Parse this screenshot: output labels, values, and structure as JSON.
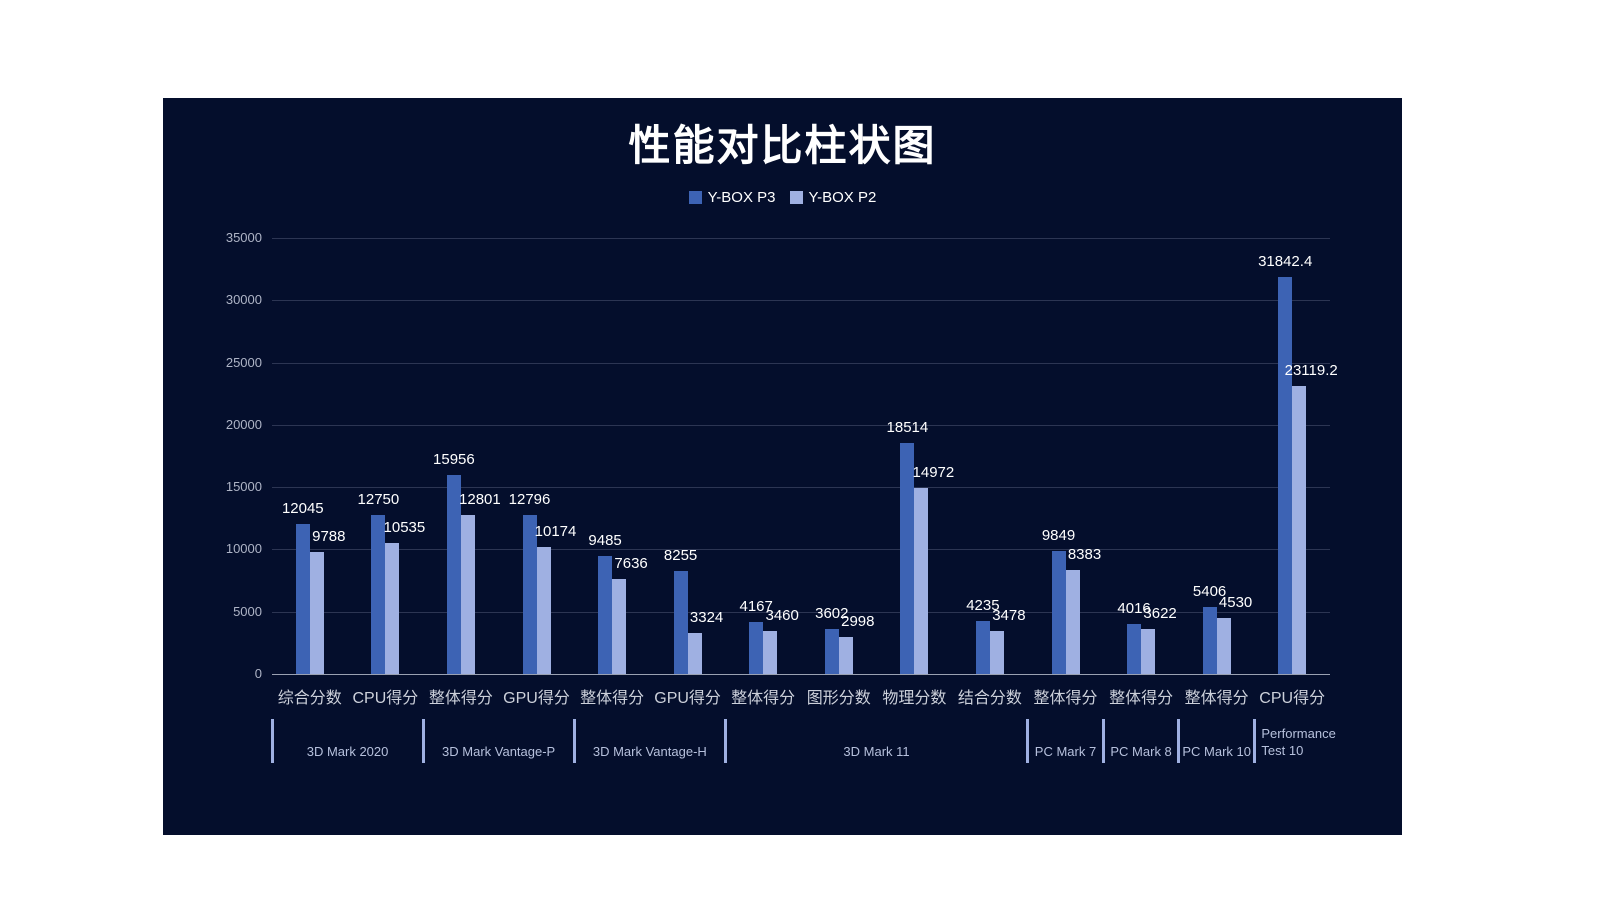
{
  "title": "性能对比柱状图",
  "colors": {
    "panel_background": "#040e2c",
    "series_p3": "#3d63b4",
    "series_p2": "#9fb0e2",
    "value_label": "#ffffff",
    "axis_line": "#9aa1b2",
    "group_divider": "#9fb0e2"
  },
  "chart_data": {
    "type": "bar",
    "title": "性能对比柱状图",
    "categories": [
      "综合分数",
      "CPU得分",
      "整体得分",
      "GPU得分",
      "整体得分",
      "GPU得分",
      "整体得分",
      "图形分数",
      "物理分数",
      "结合分数",
      "整体得分",
      "整体得分",
      "整体得分",
      "CPU得分"
    ],
    "series": [
      {
        "name": "Y-BOX P3",
        "color": "#3d63b4",
        "values": [
          12045,
          12750,
          15956,
          12796,
          9485,
          8255,
          4167,
          3602,
          18514,
          4235,
          9849,
          4016,
          5406,
          31842.4
        ]
      },
      {
        "name": "Y-BOX P2",
        "color": "#9fb0e2",
        "values": [
          9788,
          10535,
          12801,
          10174,
          7636,
          3324,
          3460,
          2998,
          14972,
          3478,
          8383,
          3622,
          4530,
          23119.2
        ]
      }
    ],
    "groups": [
      {
        "label": "3D Mark 2020",
        "span": 2
      },
      {
        "label": "3D Mark  Vantage-P",
        "span": 2
      },
      {
        "label": "3D Mark  Vantage-H",
        "span": 2
      },
      {
        "label": "3D Mark 11",
        "span": 4
      },
      {
        "label": "PC Mark 7",
        "span": 1
      },
      {
        "label": "PC Mark 8",
        "span": 1
      },
      {
        "label": "PC Mark 10",
        "span": 1
      },
      {
        "label": "Performance Test 10",
        "span": 1,
        "wrap": true
      }
    ],
    "ylim": [
      0,
      35000
    ],
    "yticks": [
      0,
      5000,
      10000,
      15000,
      20000,
      25000,
      30000,
      35000
    ],
    "grid": true,
    "legend_position": "top"
  }
}
